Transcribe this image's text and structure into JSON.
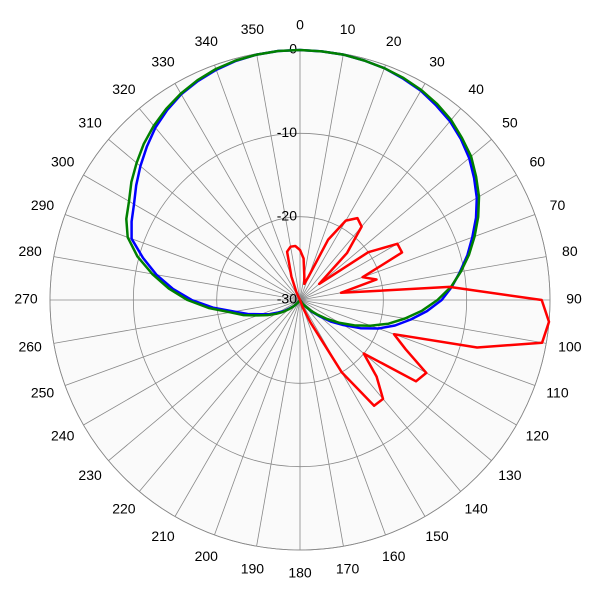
{
  "chart_data": {
    "type": "polar",
    "x": [
      0,
      5,
      10,
      15,
      20,
      25,
      30,
      35,
      40,
      45,
      50,
      55,
      60,
      65,
      70,
      75,
      80,
      85,
      90,
      95,
      100,
      105,
      110,
      115,
      120,
      125,
      130,
      135,
      140,
      145,
      150,
      155,
      160,
      165,
      170,
      175,
      180,
      185,
      190,
      195,
      200,
      205,
      210,
      215,
      220,
      225,
      230,
      235,
      240,
      245,
      250,
      255,
      260,
      265,
      270,
      275,
      280,
      285,
      290,
      295,
      300,
      305,
      310,
      315,
      320,
      325,
      330,
      335,
      340,
      345,
      350,
      355
    ],
    "xticks": [
      0,
      10,
      20,
      30,
      40,
      50,
      60,
      70,
      80,
      90,
      100,
      110,
      120,
      130,
      140,
      150,
      160,
      170,
      180,
      190,
      200,
      210,
      220,
      230,
      240,
      250,
      260,
      270,
      280,
      290,
      300,
      310,
      320,
      330,
      340,
      350
    ],
    "ylim": [
      -30,
      0
    ],
    "yticks": [
      -30,
      -20,
      -10,
      0
    ],
    "grid": true,
    "series": [
      {
        "color": "#0000ff",
        "values": [
          0,
          -0.05,
          -0.1,
          -0.25,
          -0.4,
          -0.7,
          -1,
          -1.5,
          -2,
          -2.7,
          -3.5,
          -4.5,
          -5.5,
          -6.7,
          -8,
          -9.2,
          -10.5,
          -11.7,
          -13,
          -14.7,
          -16.5,
          -18.2,
          -20,
          -22,
          -24,
          -25.5,
          -27,
          -28,
          -29,
          -29.5,
          -30,
          -30,
          -30,
          -30,
          -30,
          -30,
          -30,
          -30,
          -30,
          -30,
          -30,
          -30,
          -30,
          -30,
          -29.5,
          -29,
          -28.5,
          -27.7,
          -27,
          -26,
          -25,
          -23.5,
          -22,
          -19.5,
          -17,
          -14.7,
          -12.5,
          -10.5,
          -8.5,
          -7.7,
          -7,
          -6,
          -5,
          -4,
          -3,
          -2.2,
          -1.5,
          -1,
          -0.6,
          -0.3,
          -0.1,
          0
        ]
      },
      {
        "color": "#008000",
        "values": [
          0,
          -0.05,
          -0.1,
          -0.25,
          -0.4,
          -0.6,
          -0.9,
          -1.3,
          -1.8,
          -2.5,
          -3.2,
          -4.2,
          -5.2,
          -6.4,
          -7.7,
          -9,
          -10.4,
          -11.8,
          -13.5,
          -15.3,
          -17.2,
          -19,
          -21,
          -22.8,
          -24.5,
          -26,
          -27.3,
          -28.2,
          -29,
          -29.5,
          -30,
          -30,
          -30,
          -30,
          -30,
          -30,
          -30,
          -30,
          -30,
          -30,
          -30,
          -30,
          -30,
          -30,
          -29.5,
          -29,
          -28.3,
          -27.5,
          -26.7,
          -25.7,
          -24.6,
          -23,
          -21.5,
          -19,
          -16.5,
          -14.2,
          -12,
          -9.8,
          -8,
          -7,
          -6.3,
          -5.3,
          -4.4,
          -3.5,
          -2.7,
          -2,
          -1.4,
          -0.9,
          -0.5,
          -0.25,
          -0.1,
          0
        ]
      },
      {
        "color": "#ff0000",
        "values": [
          -24,
          -25,
          -27,
          -28,
          -27,
          -22,
          -19,
          -18,
          -18.5,
          -22,
          -27,
          -20,
          -16.5,
          -16.5,
          -22,
          -20.5,
          -25,
          -12,
          -1,
          0,
          -0.5,
          -8,
          -18,
          -16,
          -12.5,
          -13,
          -20,
          -17,
          -14.5,
          -14.5,
          -20,
          -27,
          -29,
          -30,
          -30,
          -30,
          -30,
          -30,
          -30,
          -30,
          -30,
          -30,
          -30,
          -30,
          -30,
          -30,
          -30,
          -30,
          -30,
          -30,
          -30,
          -30,
          -30,
          -30,
          -30,
          -30,
          -30,
          -30,
          -30,
          -30,
          -30,
          -30,
          -30,
          -30,
          -30,
          -30,
          -30,
          -29,
          -27,
          -24,
          -23.5,
          -23.5
        ]
      }
    ]
  }
}
